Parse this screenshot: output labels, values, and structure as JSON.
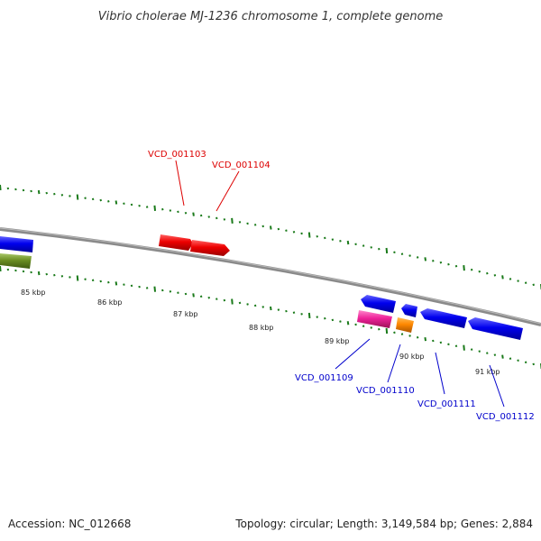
{
  "title": "Vibrio cholerae MJ-1236 chromosome 1, complete genome",
  "accession": "Accession: NC_012668",
  "summary": "Topology: circular; Length: 3,149,584 bp; Genes: 2,884",
  "kbp_labels": [
    "85 kbp",
    "86 kbp",
    "87 kbp",
    "88 kbp",
    "89 kbp",
    "90 kbp",
    "91 kbp"
  ],
  "gene_labels": {
    "forward": [
      "VCD_001103",
      "VCD_001104"
    ],
    "reverse": [
      "VCD_001109",
      "VCD_001110",
      "VCD_001111",
      "VCD_001112"
    ]
  },
  "colors": {
    "forward_label": "#dd0000",
    "reverse_label": "#0000cc",
    "tick": "#1a7a1a",
    "backbone": "#8a8a8a",
    "red_gene": "#ee0000",
    "blue_gene": "#0000ee",
    "magenta_gene": "#ee2299",
    "orange_gene": "#ff8800",
    "olive_gene": "#6b8e23"
  }
}
